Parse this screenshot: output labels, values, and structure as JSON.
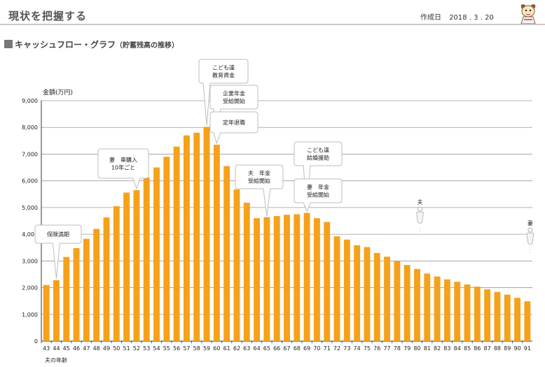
{
  "header": {
    "title": "現状を把握する",
    "created_label": "作成日",
    "created_date": "2018 . 3 . 20"
  },
  "section": {
    "title": "キャッシュフロー・グラフ",
    "subtitle": "（貯蓄残高の推移）"
  },
  "chart_data": {
    "type": "bar",
    "ylabel": "金額(万円)",
    "xlabel": "夫の年齢",
    "ylim": [
      0,
      9000
    ],
    "yticks": [
      0,
      1000,
      2000,
      3000,
      4000,
      5000,
      6000,
      7000,
      8000,
      9000
    ],
    "grid": true,
    "bar_color": "#f5a11a",
    "categories": [
      "43",
      "44",
      "45",
      "46",
      "47",
      "48",
      "49",
      "50",
      "51",
      "52",
      "53",
      "54",
      "55",
      "56",
      "57",
      "58",
      "59",
      "60",
      "61",
      "62",
      "63",
      "64",
      "65",
      "66",
      "67",
      "68",
      "69",
      "70",
      "71",
      "72",
      "73",
      "74",
      "75",
      "76",
      "77",
      "78",
      "79",
      "80",
      "81",
      "82",
      "83",
      "84",
      "85",
      "86",
      "87",
      "88",
      "89",
      "90",
      "91"
    ],
    "values": [
      2100,
      2280,
      3150,
      3480,
      3830,
      4200,
      4630,
      5050,
      5560,
      5650,
      6120,
      6500,
      6900,
      7280,
      7700,
      7800,
      8020,
      7350,
      6550,
      5680,
      5180,
      4600,
      4640,
      4680,
      4730,
      4750,
      4800,
      4600,
      4460,
      3920,
      3800,
      3590,
      3520,
      3300,
      3160,
      2990,
      2850,
      2700,
      2530,
      2420,
      2310,
      2220,
      2120,
      2040,
      1940,
      1840,
      1740,
      1620,
      1490
    ],
    "annotations": [
      {
        "category": "44",
        "lines": [
          "保険満期"
        ]
      },
      {
        "category": "52",
        "lines": [
          "妻　車購入",
          "10年ごと"
        ]
      },
      {
        "category": "59",
        "lines": [
          "こども達",
          "教育資金"
        ]
      },
      {
        "category": "60",
        "lines": [
          "企業年金",
          "受給開始"
        ]
      },
      {
        "category": "60",
        "lines": [
          "定年退職"
        ]
      },
      {
        "category": "65",
        "lines": [
          "夫　年金",
          "受給開始"
        ]
      },
      {
        "category": "69",
        "lines": [
          "こども達",
          "結婚援助"
        ]
      },
      {
        "category": "69",
        "lines": [
          "妻　年金",
          "受給開始"
        ]
      }
    ],
    "markers": [
      {
        "category": "80",
        "label": "夫"
      },
      {
        "category": "91",
        "label": "妻"
      }
    ]
  }
}
